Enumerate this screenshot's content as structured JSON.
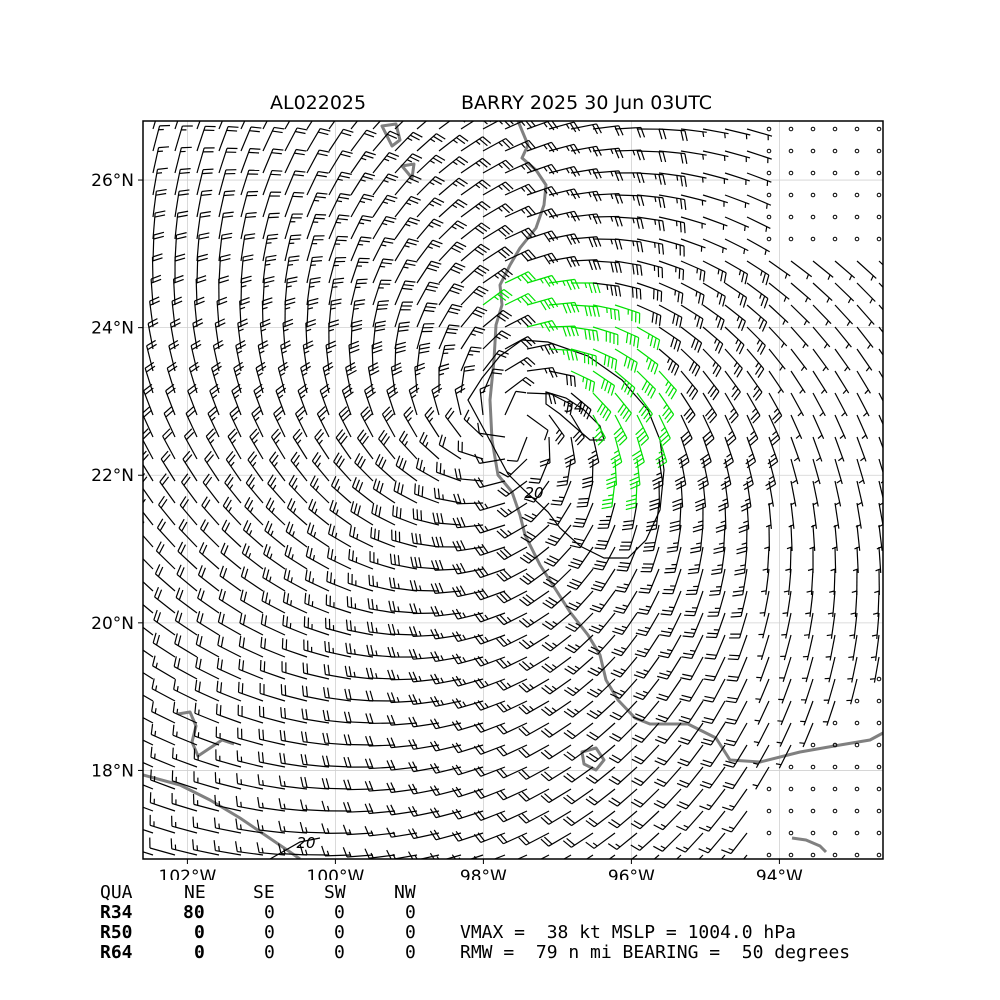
{
  "title": {
    "left": "AL022025",
    "right": "BARRY 2025 30 Jun 03UTC"
  },
  "colors": {
    "barb": "#000000",
    "barb_34kt": "#00e000",
    "barb_50kt": "#f0a000",
    "coast": "#808080",
    "grid": "#d0d0d0",
    "contour": "#000000"
  },
  "chart_data": {
    "type": "wind barb map",
    "x_ticks": [
      "102°W",
      "100°W",
      "98°W",
      "96°W",
      "94°W"
    ],
    "y_ticks": [
      "26°N",
      "24°N",
      "22°N",
      "20°N",
      "18°N"
    ],
    "xlim": [
      -102.6,
      -92.6
    ],
    "ylim": [
      16.8,
      26.8
    ],
    "grid": true,
    "storm_center": {
      "lon": -97.6,
      "lat": 22.7
    },
    "contour_labels": [
      "34",
      "20",
      "20"
    ]
  },
  "radii_table": {
    "header": [
      "QUA",
      "NE",
      "SE",
      "SW",
      "NW"
    ],
    "rows": [
      {
        "label": "R34",
        "values": [
          "80",
          "0",
          "0",
          "0"
        ]
      },
      {
        "label": "R50",
        "values": [
          "0",
          "0",
          "0",
          "0"
        ]
      },
      {
        "label": "R64",
        "values": [
          "0",
          "0",
          "0",
          "0"
        ]
      }
    ]
  },
  "stats": {
    "line1": "VMAX =  38 kt MSLP = 1004.0 hPa",
    "line2": "RMW =  79 n mi BEARING =  50 degrees"
  }
}
